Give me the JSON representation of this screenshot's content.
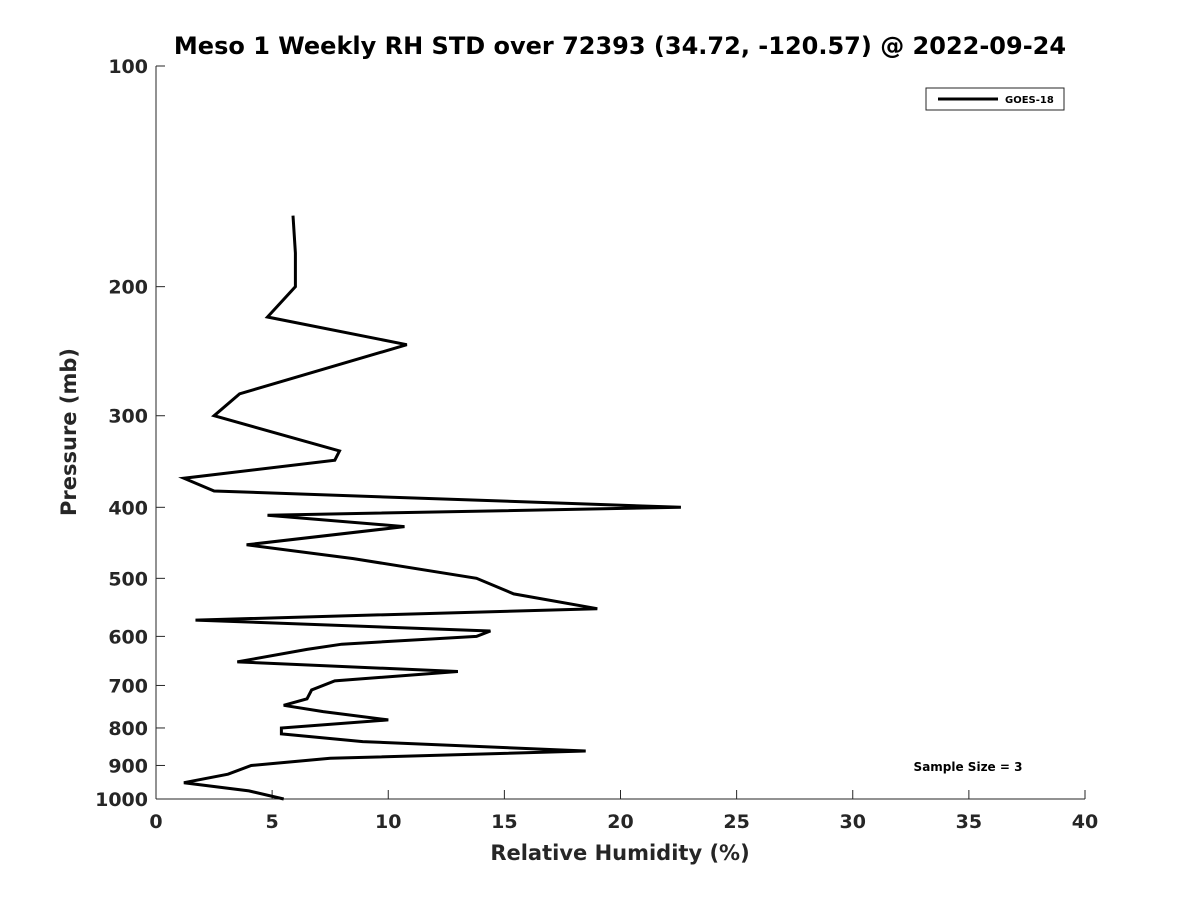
{
  "chart_data": {
    "type": "line",
    "title": "Meso 1 Weekly RH STD over 72393 (34.72, -120.57) @ 2022-09-24",
    "xlabel": "Relative Humidity (%)",
    "ylabel": "Pressure (mb)",
    "xlim": [
      0,
      40
    ],
    "ylim": [
      1000,
      100
    ],
    "y_scale": "log",
    "y_reversed": true,
    "grid": false,
    "legend_position": "top-right",
    "x_ticks": [
      0,
      5,
      10,
      15,
      20,
      25,
      30,
      35,
      40
    ],
    "y_ticks": [
      100,
      200,
      300,
      400,
      500,
      600,
      700,
      800,
      900,
      1000
    ],
    "series": [
      {
        "name": "GOES-18",
        "color": "#000000",
        "x": [
          5.5,
          4.0,
          1.2,
          3.1,
          4.1,
          7.5,
          18.5,
          8.9,
          5.4,
          5.4,
          10.0,
          7.2,
          5.5,
          6.5,
          6.7,
          7.7,
          13.0,
          3.5,
          6.5,
          8.0,
          13.8,
          14.4,
          1.7,
          19.0,
          15.4,
          13.8,
          8.5,
          3.9,
          10.7,
          4.8,
          22.6,
          2.5,
          1.2,
          7.7,
          7.9,
          2.5,
          3.6,
          10.8,
          4.8,
          6.0,
          6.0,
          5.9
        ]
      }
    ],
    "pressure_levels": [
      1000,
      975,
      950,
      925,
      900,
      880,
      860,
      835,
      815,
      800,
      780,
      760,
      745,
      730,
      710,
      690,
      670,
      650,
      625,
      615,
      600,
      590,
      570,
      550,
      525,
      500,
      470,
      450,
      425,
      410,
      400,
      380,
      365,
      345,
      335,
      300,
      280,
      240,
      220,
      200,
      180,
      160
    ]
  },
  "legend": {
    "label": "GOES-18"
  },
  "annotation": {
    "sample_size": "Sample Size = 3"
  }
}
